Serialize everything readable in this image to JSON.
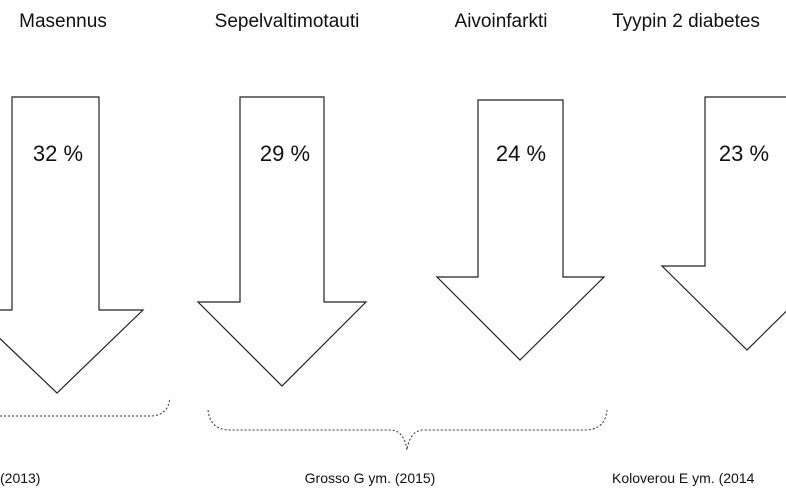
{
  "items": [
    {
      "label": "Masennus",
      "value": "32 %"
    },
    {
      "label": "Sepelvaltimotauti",
      "value": "29 %"
    },
    {
      "label": "Aivoinfarkti",
      "value": "24 %"
    },
    {
      "label": "Tyypin 2 diabetes",
      "value": "23 %"
    }
  ],
  "sources": [
    "(2013)",
    "Grosso G ym. (2015)",
    "Koloverou E ym. (2014"
  ]
}
